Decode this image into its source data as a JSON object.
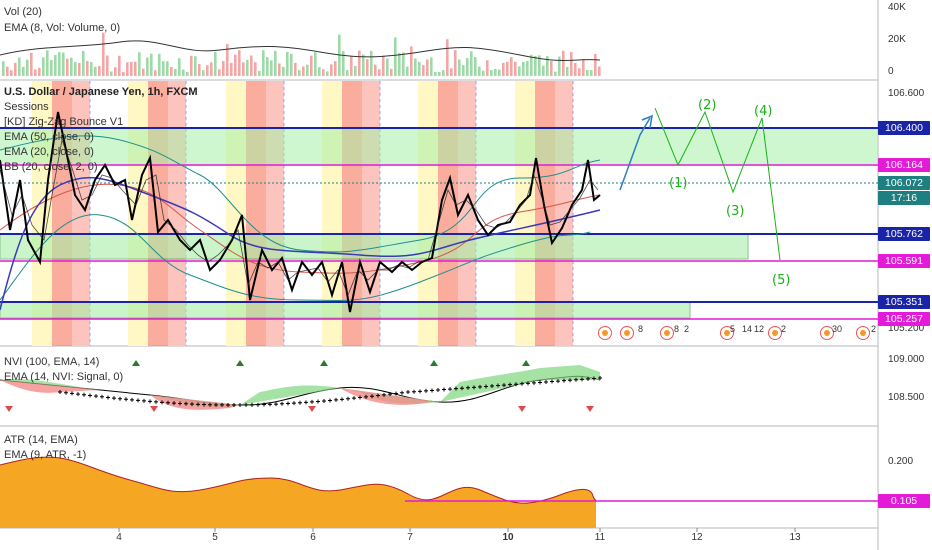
{
  "panes": {
    "volume": {
      "title": "Vol (20)",
      "ema": "EMA (8, Vol: Volume, 0)",
      "axis": [
        "40K",
        "20K",
        "0"
      ]
    },
    "main": {
      "title": "U.S. Dollar / Japanese Yen, 1h, FXCM",
      "indicators": [
        "Sessions",
        "[KD] Zig-Zag Bounce V1",
        "EMA (50, close, 0)",
        "EMA (20, close, 0)",
        "BB (20, close, 2, 0)"
      ],
      "axis": [
        "106.600",
        "105.200"
      ]
    },
    "nvi": {
      "title": "NVI (100, EMA, 14)",
      "ema": "EMA (14, NVI: Signal, 0)",
      "axis": [
        "109.000",
        "108.500"
      ]
    },
    "atr": {
      "title": "ATR (14, EMA)",
      "ema": "EMA (9, ATR, -1)",
      "axis": [
        "0.200"
      ]
    }
  },
  "price_tags": [
    {
      "label": "106.400",
      "color": "#1a24a8"
    },
    {
      "label": "106.164",
      "color": "#e31ad8"
    },
    {
      "label": "106.072",
      "color": "#1d7f7f"
    },
    {
      "label": "17:16",
      "color": "#1d7f7f"
    },
    {
      "label": "105.762",
      "color": "#1a24a8"
    },
    {
      "label": "105.591",
      "color": "#e31ad8"
    },
    {
      "label": "105.351",
      "color": "#1a24a8"
    },
    {
      "label": "105.257",
      "color": "#e31ad8"
    },
    {
      "label": "0.105",
      "color": "#e31ad8"
    }
  ],
  "time_axis": [
    "4",
    "5",
    "6",
    "7",
    "10",
    "11",
    "12",
    "13"
  ],
  "wave_labels": [
    "(1)",
    "(2)",
    "(3)",
    "(4)",
    "(5)"
  ],
  "calendar_numbers": [
    "8",
    "8",
    "2",
    "5",
    "14",
    "12",
    "2",
    "30",
    "2"
  ],
  "colors": {
    "level_blue": "#1a24a8",
    "level_magenta": "#e31ad8",
    "zone_green": "#a7f0a7",
    "zigzag": "#000000",
    "wave": "#19b219",
    "atr_fill": "#f5a623"
  }
}
